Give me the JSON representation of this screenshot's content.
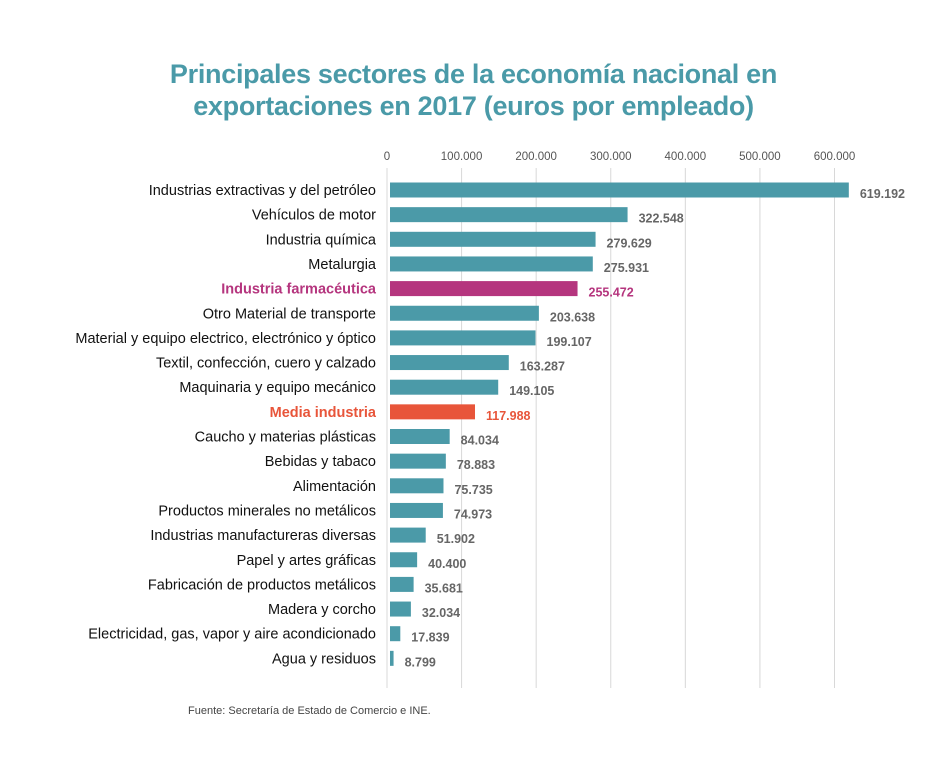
{
  "chart_data": {
    "type": "bar",
    "orientation": "horizontal",
    "title_lines": [
      "Principales sectores de la economía nacional en",
      "exportaciones en 2017 (euros por empleado)"
    ],
    "xlim": [
      0,
      650000
    ],
    "x_ticks": [
      0,
      100000,
      200000,
      300000,
      400000,
      500000,
      600000
    ],
    "x_tick_labels": [
      "0",
      "100.000",
      "200.000",
      "300.000",
      "400.000",
      "500.000",
      "600.000"
    ],
    "grid": true,
    "categories": [
      "Industrias extractivas y del petróleo",
      "Vehículos de motor",
      "Industria química",
      "Metalurgia",
      "Industria farmacéutica",
      "Otro Material de transporte",
      "Material y equipo electrico, electrónico y óptico",
      "Textil, confección, cuero y calzado",
      "Maquinaria y equipo mecánico",
      "Media industria",
      "Caucho y materias plásticas",
      "Bebidas y tabaco",
      "Alimentación",
      "Productos minerales no metálicos",
      "Industrias manufactureras diversas",
      "Papel y artes gráficas",
      "Fabricación de productos metálicos",
      "Madera y corcho",
      "Electricidad, gas, vapor y aire acondicionado",
      "Agua y residuos"
    ],
    "values": [
      619192,
      322548,
      279629,
      275931,
      255472,
      203638,
      199107,
      163287,
      149105,
      117988,
      84034,
      78883,
      75735,
      74973,
      51902,
      40400,
      35681,
      32034,
      17839,
      8799
    ],
    "value_labels": [
      "619.192",
      "322.548",
      "279.629",
      "275.931",
      "255.472",
      "203.638",
      "199.107",
      "163.287",
      "149.105",
      "117.988",
      "84.034",
      "78.883",
      "75.735",
      "74.973",
      "51.902",
      "40.400",
      "35.681",
      "32.034",
      "17.839",
      "8.799"
    ],
    "highlights": {
      "Industria farmacéutica": "#b5357e",
      "Media industria": "#e8553a"
    },
    "bar_color": "#4b9aa8",
    "label_color": "#111111",
    "value_label_color": "#666666",
    "grid_color": "#d8d8d8"
  },
  "source_note": "Fuente: Secretaría de Estado de Comercio e INE."
}
